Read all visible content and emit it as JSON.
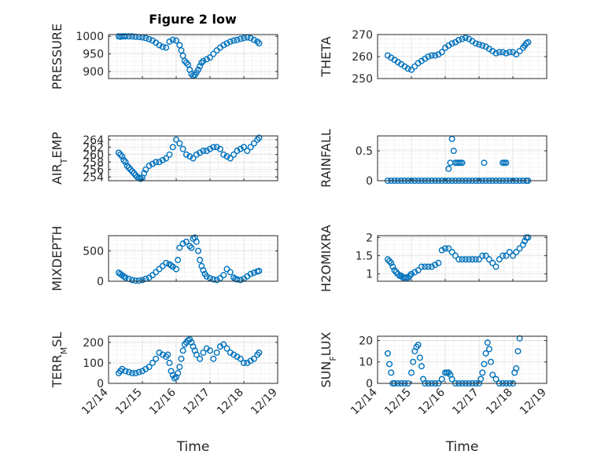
{
  "figure": {
    "title": "Figure 2 low",
    "marker_color": "#0072BD"
  },
  "chart_data": [
    {
      "type": "scatter",
      "xlabel": "",
      "ylabel": "PRESSURE",
      "xlim": [
        0,
        5
      ],
      "ylim": [
        880,
        1005
      ],
      "yticks": [
        900,
        950,
        1000
      ],
      "grid": true,
      "show_xticks": false,
      "x": [
        0.3,
        0.35,
        0.4,
        0.45,
        0.5,
        0.6,
        0.7,
        0.8,
        0.9,
        1.0,
        1.1,
        1.2,
        1.3,
        1.4,
        1.5,
        1.6,
        1.7,
        1.8,
        1.9,
        2.0,
        2.1,
        2.15,
        2.2,
        2.25,
        2.3,
        2.35,
        2.4,
        2.45,
        2.5,
        2.55,
        2.6,
        2.65,
        2.7,
        2.75,
        2.8,
        2.9,
        3.0,
        3.1,
        3.2,
        3.3,
        3.4,
        3.5,
        3.6,
        3.7,
        3.8,
        3.9,
        4.0,
        4.1,
        4.2,
        4.3,
        4.4,
        4.45
      ],
      "y": [
        1000,
        999,
        1000,
        1000,
        1000,
        1000,
        1000,
        999,
        998,
        997,
        995,
        992,
        988,
        982,
        975,
        970,
        968,
        985,
        990,
        988,
        975,
        960,
        945,
        930,
        925,
        920,
        905,
        893,
        888,
        890,
        897,
        905,
        915,
        925,
        930,
        935,
        940,
        950,
        960,
        968,
        975,
        980,
        985,
        988,
        990,
        993,
        995,
        997,
        995,
        990,
        985,
        980
      ]
    },
    {
      "type": "scatter",
      "xlabel": "",
      "ylabel": "THETA",
      "xlim": [
        0,
        5
      ],
      "ylim": [
        250,
        270
      ],
      "yticks": [
        250,
        260,
        270
      ],
      "grid": true,
      "show_xticks": false,
      "x": [
        0.3,
        0.4,
        0.5,
        0.6,
        0.7,
        0.8,
        0.9,
        1.0,
        1.1,
        1.2,
        1.3,
        1.4,
        1.5,
        1.6,
        1.7,
        1.8,
        1.9,
        2.0,
        2.1,
        2.2,
        2.3,
        2.4,
        2.5,
        2.6,
        2.7,
        2.8,
        2.9,
        3.0,
        3.1,
        3.2,
        3.3,
        3.4,
        3.5,
        3.6,
        3.7,
        3.8,
        3.9,
        4.0,
        4.1,
        4.2,
        4.3,
        4.35,
        4.4,
        4.45
      ],
      "y": [
        260.5,
        259.5,
        258.5,
        257.5,
        256.5,
        255.5,
        254.5,
        254,
        255.5,
        257,
        258,
        259,
        260,
        260.5,
        260.5,
        261,
        262,
        264,
        265,
        266,
        266.5,
        267.5,
        268,
        268.5,
        268,
        267,
        266,
        265.5,
        265,
        264.5,
        263.5,
        262.5,
        261.5,
        262,
        262,
        261.5,
        262,
        262,
        261,
        262.5,
        264,
        265,
        266,
        266.5
      ]
    },
    {
      "type": "scatter",
      "xlabel": "",
      "ylabel": "AIR_TEMP",
      "xlim": [
        0,
        5
      ],
      "ylim": [
        253,
        265
      ],
      "yticks": [
        254,
        256,
        258,
        260,
        262,
        264
      ],
      "grid": true,
      "show_xticks": false,
      "x": [
        0.3,
        0.35,
        0.4,
        0.45,
        0.5,
        0.55,
        0.6,
        0.65,
        0.7,
        0.75,
        0.8,
        0.85,
        0.9,
        0.95,
        1.0,
        1.05,
        1.1,
        1.2,
        1.3,
        1.4,
        1.5,
        1.6,
        1.7,
        1.8,
        1.9,
        2.0,
        2.1,
        2.2,
        2.3,
        2.4,
        2.5,
        2.6,
        2.7,
        2.8,
        2.9,
        3.0,
        3.1,
        3.2,
        3.3,
        3.4,
        3.5,
        3.6,
        3.7,
        3.8,
        3.9,
        4.0,
        4.1,
        4.2,
        4.3,
        4.4,
        4.45
      ],
      "y": [
        260.5,
        260,
        259.5,
        258.5,
        258,
        257,
        256.5,
        256,
        255.5,
        255,
        254.5,
        254,
        253.8,
        253.5,
        253.8,
        255,
        256,
        257,
        257.5,
        258,
        258,
        258.5,
        259,
        260,
        262,
        264,
        263,
        261.5,
        260,
        259.5,
        259,
        260,
        260.5,
        261,
        261,
        261.5,
        262,
        262,
        261.5,
        260,
        259.5,
        259,
        260,
        261,
        261.5,
        262,
        261,
        262,
        263,
        264,
        264.5
      ]
    },
    {
      "type": "scatter",
      "xlabel": "",
      "ylabel": "RAINFALL",
      "xlim": [
        0,
        5
      ],
      "ylim": [
        0,
        0.75
      ],
      "yticks": [
        0,
        0.5
      ],
      "grid": true,
      "show_xticks": false,
      "x": [
        0.3,
        0.4,
        0.5,
        0.6,
        0.7,
        0.8,
        0.9,
        1.0,
        1.1,
        1.2,
        1.3,
        1.4,
        1.5,
        1.6,
        1.7,
        1.8,
        1.9,
        2.0,
        2.1,
        2.2,
        2.3,
        2.4,
        2.5,
        2.6,
        2.7,
        2.8,
        2.9,
        3.0,
        3.1,
        3.2,
        3.3,
        3.4,
        3.5,
        3.6,
        3.7,
        3.8,
        3.9,
        4.0,
        4.1,
        4.2,
        4.3,
        4.4,
        4.45,
        2.1,
        2.15,
        2.2,
        2.25,
        2.3,
        2.35,
        2.4,
        2.45,
        2.5,
        3.15,
        3.7,
        3.75,
        3.8
      ],
      "y": [
        0,
        0,
        0,
        0,
        0,
        0,
        0,
        0,
        0,
        0,
        0,
        0,
        0,
        0,
        0,
        0,
        0,
        0,
        0,
        0,
        0,
        0,
        0,
        0,
        0,
        0,
        0,
        0,
        0,
        0,
        0,
        0,
        0,
        0,
        0,
        0,
        0,
        0,
        0,
        0,
        0,
        0,
        0,
        0.2,
        0.3,
        0.7,
        0.5,
        0.3,
        0.3,
        0.3,
        0.3,
        0.3,
        0.3,
        0.3,
        0.3,
        0.3
      ]
    },
    {
      "type": "scatter",
      "xlabel": "",
      "ylabel": "MIXDEPTH",
      "xlim": [
        0,
        5
      ],
      "ylim": [
        0,
        750
      ],
      "yticks": [
        0,
        500
      ],
      "grid": true,
      "show_xticks": false,
      "x": [
        0.3,
        0.35,
        0.4,
        0.45,
        0.5,
        0.6,
        0.7,
        0.8,
        0.9,
        1.0,
        1.1,
        1.2,
        1.3,
        1.4,
        1.5,
        1.6,
        1.7,
        1.8,
        1.85,
        1.9,
        2.0,
        2.05,
        2.1,
        2.2,
        2.3,
        2.4,
        2.45,
        2.5,
        2.55,
        2.6,
        2.65,
        2.7,
        2.75,
        2.8,
        2.85,
        2.9,
        3.0,
        3.1,
        3.2,
        3.3,
        3.4,
        3.5,
        3.6,
        3.7,
        3.75,
        3.8,
        3.9,
        4.0,
        4.1,
        4.2,
        4.3,
        4.4,
        4.45
      ],
      "y": [
        140,
        120,
        100,
        80,
        60,
        40,
        20,
        10,
        10,
        20,
        40,
        60,
        100,
        150,
        200,
        250,
        300,
        280,
        260,
        240,
        200,
        350,
        550,
        620,
        650,
        580,
        550,
        700,
        720,
        650,
        500,
        350,
        250,
        180,
        120,
        80,
        50,
        30,
        20,
        50,
        100,
        200,
        150,
        60,
        40,
        30,
        20,
        40,
        80,
        120,
        140,
        160,
        170
      ]
    },
    {
      "type": "scatter",
      "xlabel": "",
      "ylabel": "H2OMIXRA",
      "xlim": [
        0,
        5
      ],
      "ylim": [
        0.8,
        2.05
      ],
      "yticks": [
        1,
        1.5,
        2
      ],
      "grid": true,
      "show_xticks": false,
      "x": [
        0.3,
        0.35,
        0.4,
        0.45,
        0.5,
        0.55,
        0.6,
        0.65,
        0.7,
        0.75,
        0.8,
        0.85,
        0.9,
        0.95,
        1.0,
        1.1,
        1.2,
        1.3,
        1.4,
        1.5,
        1.6,
        1.7,
        1.8,
        1.9,
        2.0,
        2.1,
        2.2,
        2.3,
        2.4,
        2.5,
        2.6,
        2.7,
        2.8,
        2.9,
        3.0,
        3.1,
        3.2,
        3.3,
        3.4,
        3.5,
        3.6,
        3.7,
        3.8,
        3.9,
        4.0,
        4.1,
        4.2,
        4.3,
        4.35,
        4.4,
        4.45
      ],
      "y": [
        1.4,
        1.35,
        1.3,
        1.2,
        1.1,
        1.05,
        1.0,
        0.95,
        0.95,
        0.9,
        0.9,
        0.9,
        0.9,
        0.95,
        1.0,
        1.05,
        1.1,
        1.2,
        1.2,
        1.2,
        1.2,
        1.25,
        1.3,
        1.65,
        1.7,
        1.7,
        1.6,
        1.5,
        1.4,
        1.4,
        1.4,
        1.4,
        1.4,
        1.4,
        1.4,
        1.5,
        1.5,
        1.4,
        1.3,
        1.2,
        1.4,
        1.5,
        1.5,
        1.6,
        1.5,
        1.6,
        1.7,
        1.8,
        1.9,
        2.0,
        2.0
      ]
    },
    {
      "type": "scatter",
      "xlabel": "Time",
      "ylabel": "TERR_MSL",
      "xlim": [
        0,
        5
      ],
      "ylim": [
        0,
        230
      ],
      "yticks": [
        0,
        100,
        200
      ],
      "grid": true,
      "show_xticks": true,
      "xticks": [
        0,
        1,
        2,
        3,
        4,
        5
      ],
      "xticklabels": [
        "12/14",
        "12/15",
        "12/16",
        "12/17",
        "12/18",
        "12/19"
      ],
      "x": [
        0.3,
        0.35,
        0.4,
        0.5,
        0.6,
        0.7,
        0.8,
        0.9,
        1.0,
        1.1,
        1.2,
        1.3,
        1.4,
        1.5,
        1.6,
        1.7,
        1.75,
        1.8,
        1.85,
        1.9,
        1.95,
        2.0,
        2.05,
        2.1,
        2.15,
        2.2,
        2.25,
        2.3,
        2.35,
        2.4,
        2.45,
        2.5,
        2.55,
        2.6,
        2.7,
        2.8,
        2.9,
        3.0,
        3.1,
        3.2,
        3.3,
        3.4,
        3.5,
        3.6,
        3.7,
        3.8,
        3.9,
        4.0,
        4.1,
        4.2,
        4.3,
        4.4,
        4.45
      ],
      "y": [
        50,
        60,
        70,
        60,
        55,
        50,
        50,
        55,
        60,
        70,
        80,
        100,
        120,
        150,
        140,
        130,
        140,
        100,
        60,
        40,
        25,
        30,
        50,
        80,
        120,
        160,
        190,
        200,
        210,
        215,
        200,
        180,
        160,
        140,
        120,
        150,
        170,
        160,
        120,
        150,
        180,
        190,
        170,
        150,
        140,
        130,
        120,
        100,
        100,
        110,
        120,
        140,
        150
      ]
    },
    {
      "type": "scatter",
      "xlabel": "Time",
      "ylabel": "SUN_FLUX",
      "xlim": [
        0,
        5
      ],
      "ylim": [
        0,
        22
      ],
      "yticks": [
        0,
        10,
        20
      ],
      "grid": true,
      "show_xticks": true,
      "xticks": [
        0,
        1,
        2,
        3,
        4,
        5
      ],
      "xticklabels": [
        "12/14",
        "12/15",
        "12/16",
        "12/17",
        "12/18",
        "12/19"
      ],
      "x": [
        0.3,
        0.35,
        0.4,
        0.45,
        0.5,
        0.6,
        0.7,
        0.8,
        0.9,
        1.0,
        1.05,
        1.1,
        1.15,
        1.2,
        1.25,
        1.3,
        1.35,
        1.4,
        1.5,
        1.6,
        1.7,
        1.8,
        1.9,
        2.0,
        2.05,
        2.1,
        2.15,
        2.2,
        2.3,
        2.4,
        2.5,
        2.6,
        2.7,
        2.8,
        2.9,
        3.0,
        3.05,
        3.1,
        3.15,
        3.2,
        3.25,
        3.3,
        3.35,
        3.4,
        3.5,
        3.6,
        3.7,
        3.8,
        3.9,
        4.0,
        4.05,
        4.1,
        4.15,
        4.2
      ],
      "y": [
        14,
        9,
        5,
        0,
        0,
        0,
        0,
        0,
        0,
        5,
        10,
        15,
        17,
        18,
        12,
        8,
        2,
        0,
        0,
        0,
        0,
        0,
        2,
        5,
        5,
        5,
        4,
        2,
        0,
        0,
        0,
        0,
        0,
        0,
        0,
        0,
        2,
        5,
        9,
        14,
        19,
        16,
        10,
        4,
        2,
        0,
        0,
        0,
        0,
        0,
        5,
        7,
        15,
        21
      ]
    }
  ]
}
